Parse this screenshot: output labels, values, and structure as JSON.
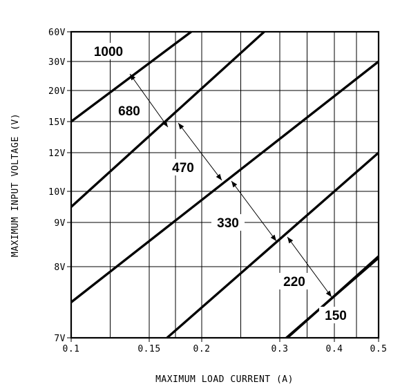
{
  "chart_data": {
    "type": "line",
    "xlabel": "MAXIMUM LOAD CURRENT (A)",
    "ylabel": "MAXIMUM INPUT VOLTAGE (V)",
    "x_ticks": [
      {
        "v": 0.1,
        "label": "0.1"
      },
      {
        "v": 0.15,
        "label": "0.15"
      },
      {
        "v": 0.2,
        "label": "0.2"
      },
      {
        "v": 0.3,
        "label": "0.3"
      },
      {
        "v": 0.4,
        "label": "0.4"
      },
      {
        "v": 0.5,
        "label": "0.5"
      }
    ],
    "x_grid": [
      0.1,
      0.125,
      0.15,
      0.175,
      0.2,
      0.25,
      0.3,
      0.35,
      0.4,
      0.45,
      0.5
    ],
    "y_ticks": [
      {
        "label": "60V"
      },
      {
        "label": "30V"
      },
      {
        "label": "20V"
      },
      {
        "label": "15V"
      },
      {
        "label": "12V"
      },
      {
        "label": "10V"
      },
      {
        "label": "9V"
      },
      {
        "label": "8V"
      },
      {
        "label": "7V"
      }
    ],
    "series": [
      {
        "label": "1000",
        "points": [
          [
            0.1,
            15
          ],
          [
            0.19,
            60
          ]
        ]
      },
      {
        "label": "680",
        "points": [
          [
            0.1,
            9.5
          ],
          [
            0.28,
            60
          ]
        ]
      },
      {
        "label": "470",
        "points": [
          [
            0.1,
            7.5
          ],
          [
            0.5,
            30
          ]
        ]
      },
      {
        "label": "330",
        "points": [
          [
            0.167,
            7
          ],
          [
            0.5,
            12
          ]
        ]
      },
      {
        "label": "220",
        "points": [
          [
            0.312,
            7
          ],
          [
            0.5,
            8.2
          ]
        ]
      }
    ],
    "value_labels": [
      "1000",
      "680",
      "470",
      "330",
      "220",
      "150"
    ],
    "grid": true,
    "legend": "none"
  }
}
